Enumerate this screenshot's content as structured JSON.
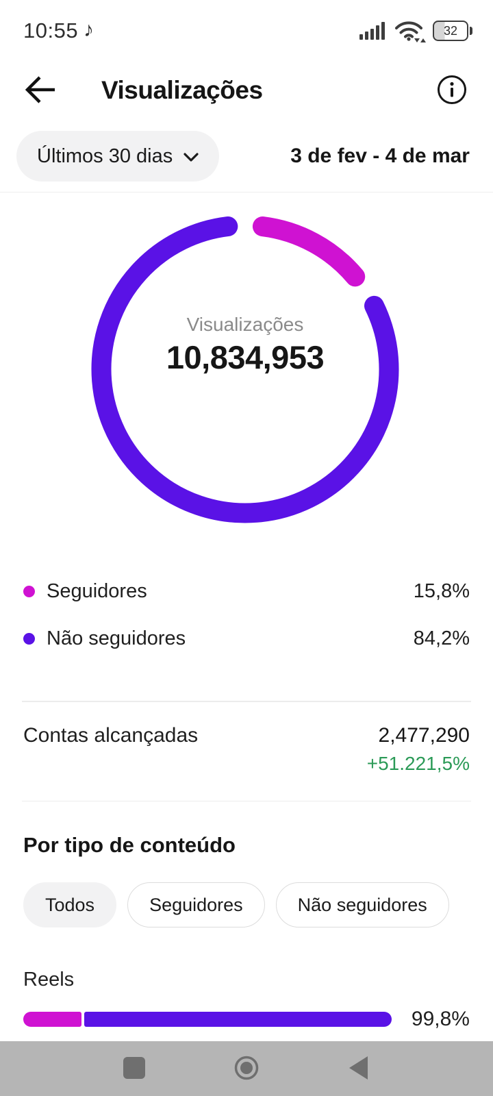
{
  "status_bar": {
    "time": "10:55",
    "battery_percent": "32"
  },
  "header": {
    "title": "Visualizações"
  },
  "filter": {
    "period": "Últimos 30 dias",
    "date_range": "3 de fev - 4 de mar"
  },
  "donut": {
    "center_label": "Visualizações",
    "center_value": "10,834,953"
  },
  "chart_data": {
    "type": "pie",
    "title": "Visualizações",
    "total_label": "10,834,953",
    "segments": [
      {
        "label": "Seguidores",
        "pct": 15.8,
        "color": "#cf12d2"
      },
      {
        "label": "Não seguidores",
        "pct": 84.2,
        "color": "#5a12e6"
      }
    ],
    "legend_position": "below"
  },
  "legend": [
    {
      "label": "Seguidores",
      "value": "15,8%",
      "color": "#cf12d2"
    },
    {
      "label": "Não seguidores",
      "value": "84,2%",
      "color": "#5a12e6"
    }
  ],
  "reach": {
    "label": "Contas alcançadas",
    "value": "2,477,290",
    "delta": "+51.221,5%",
    "delta_color": "#2b9a57"
  },
  "content_type": {
    "heading": "Por tipo de conteúdo",
    "chips": [
      {
        "label": "Todos",
        "selected": true
      },
      {
        "label": "Seguidores",
        "selected": false
      },
      {
        "label": "Não seguidores",
        "selected": false
      }
    ],
    "rows": [
      {
        "label": "Reels",
        "value": "99,8%",
        "followers_pct": 15.8,
        "non_followers_pct": 84.2
      }
    ]
  }
}
